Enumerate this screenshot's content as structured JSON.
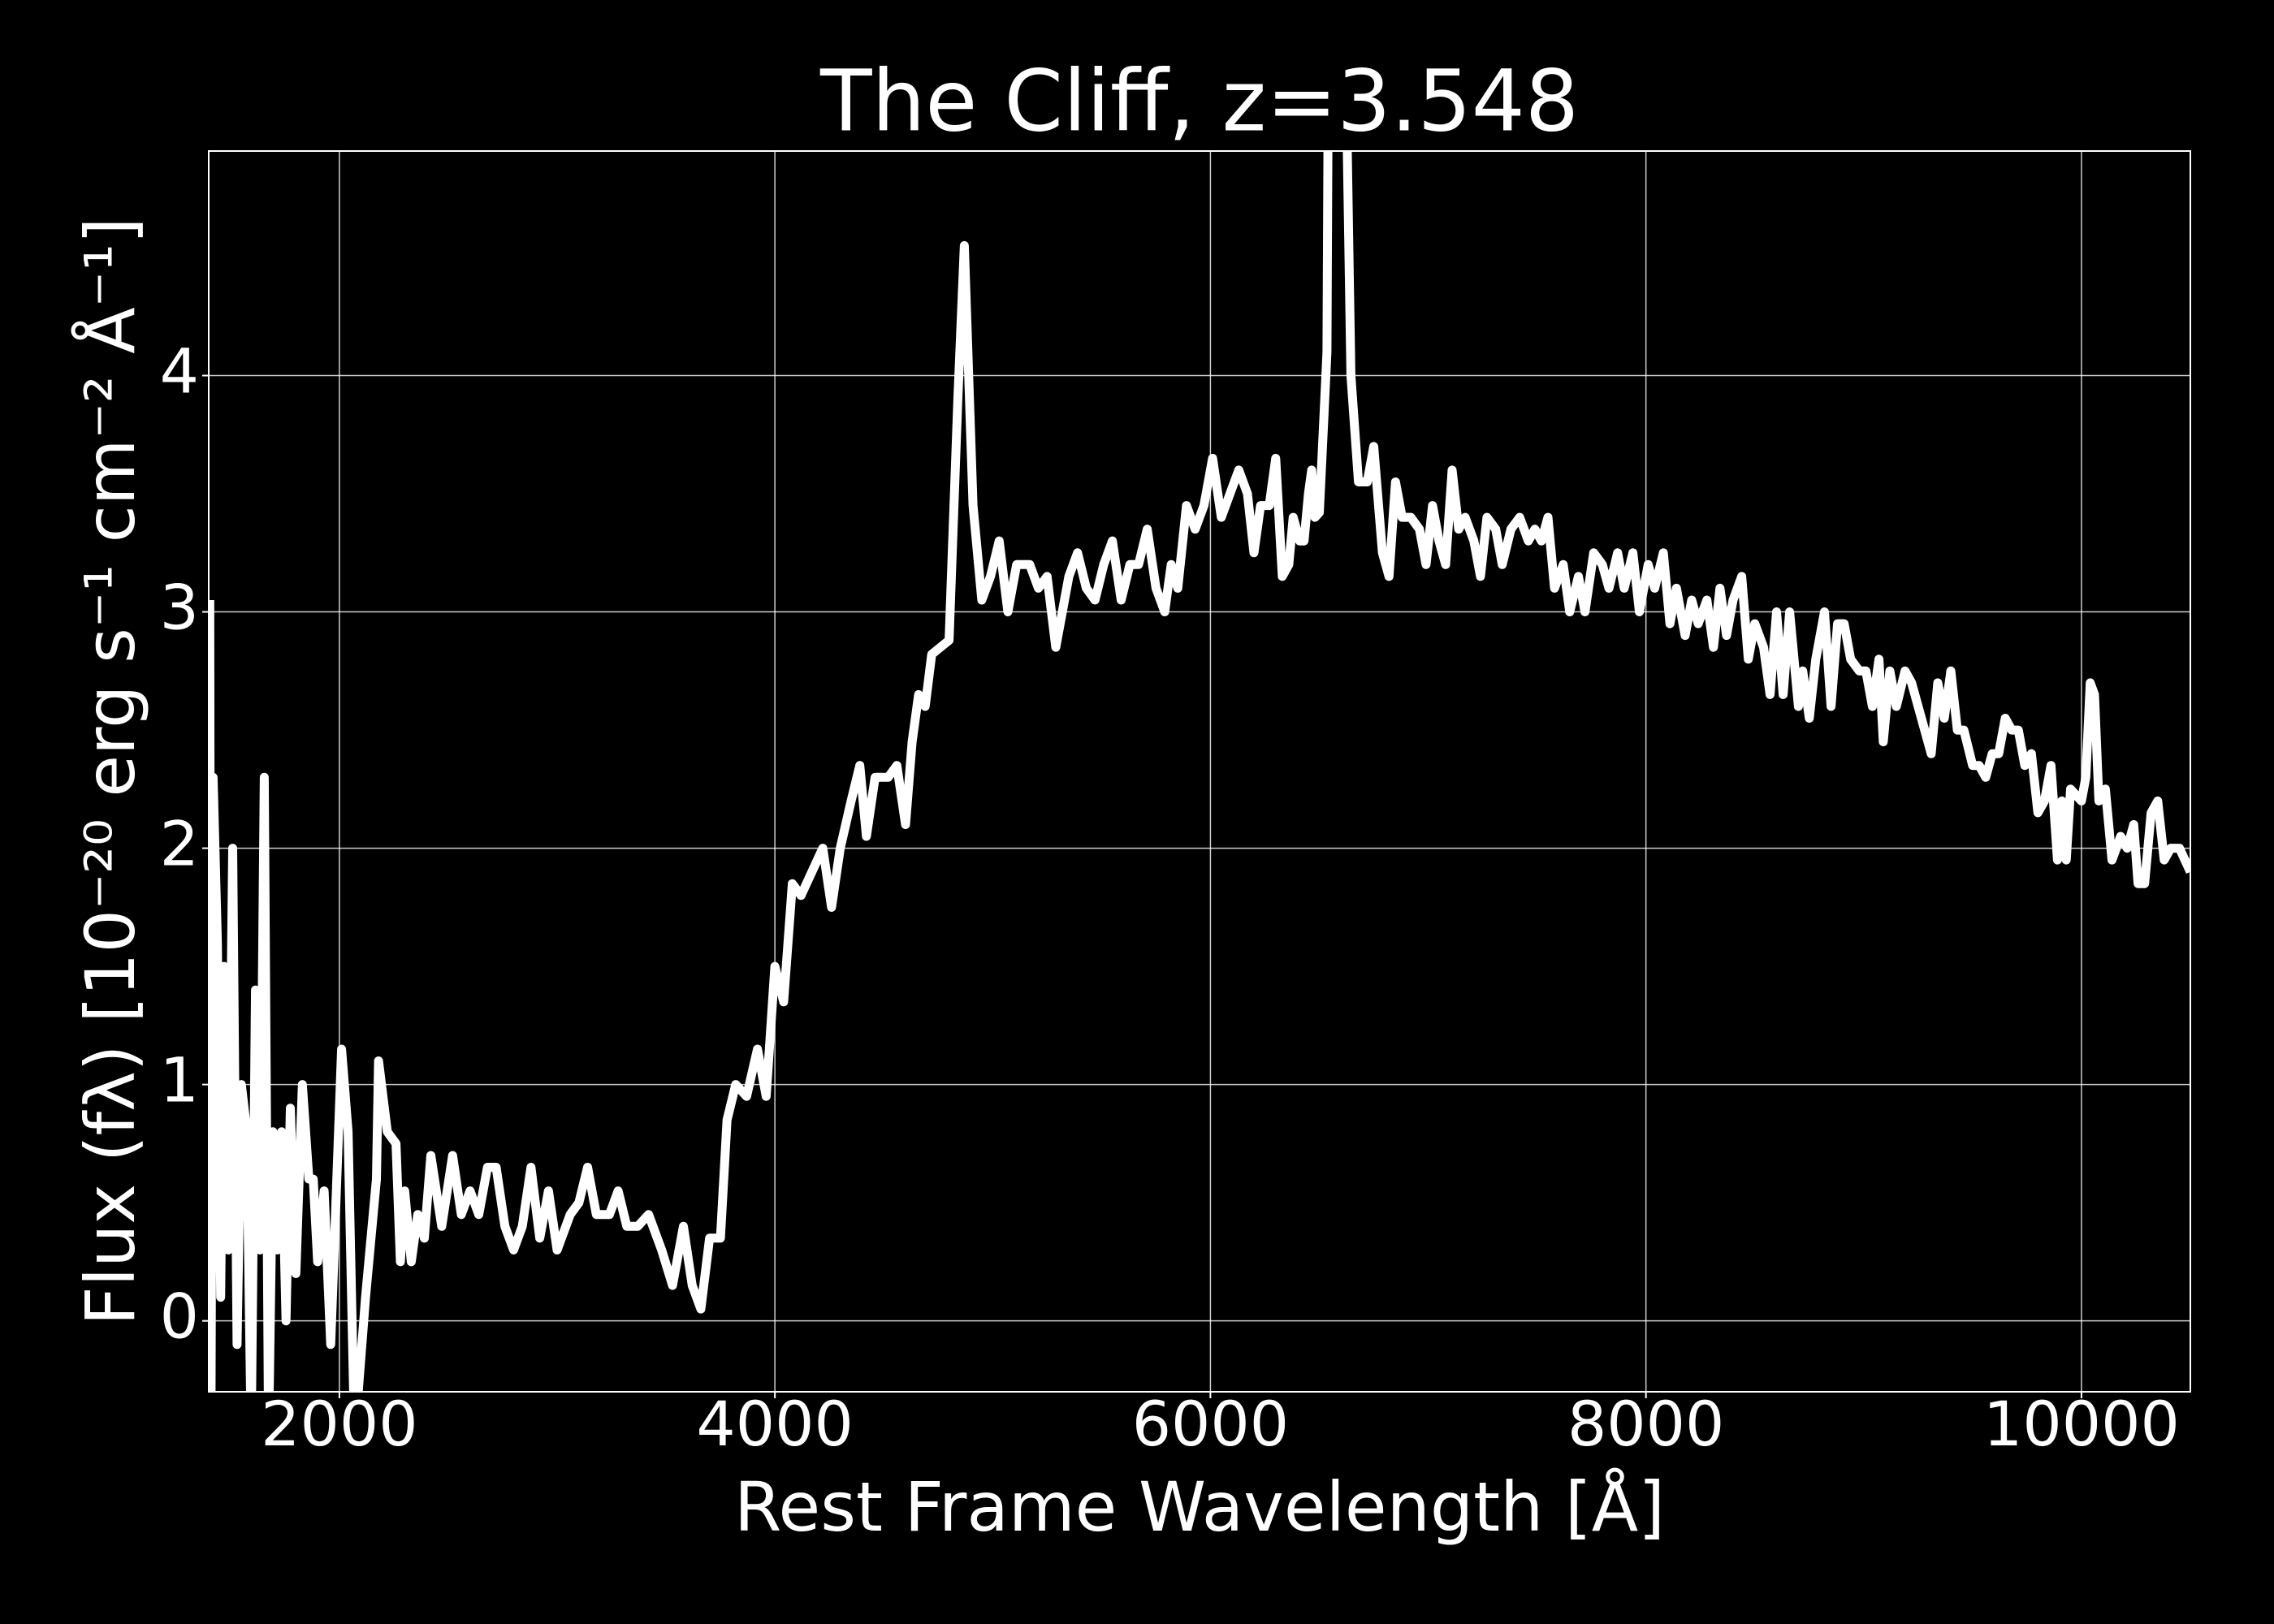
{
  "chart_data": {
    "type": "line",
    "title": "The Cliff, z=3.548",
    "x_label": "Rest Frame Wavelength [Å]",
    "y_label": "Flux (fλ) [10⁻²⁰ erg s⁻¹ cm⁻² Å⁻¹]",
    "color": "#ffffff",
    "grid": true,
    "xlim": [
      1400,
      10500
    ],
    "ylim": [
      -0.3,
      4.95
    ],
    "xticks": [
      2000,
      4000,
      6000,
      8000,
      10000
    ],
    "yticks": [
      0,
      1,
      2,
      3,
      4
    ],
    "x": [
      1405,
      1410,
      1420,
      1440,
      1455,
      1470,
      1490,
      1510,
      1530,
      1550,
      1575,
      1595,
      1615,
      1635,
      1655,
      1675,
      1695,
      1715,
      1735,
      1755,
      1775,
      1800,
      1830,
      1860,
      1880,
      1900,
      1930,
      1960,
      2010,
      2040,
      2070,
      2120,
      2170,
      2180,
      2220,
      2260,
      2280,
      2300,
      2330,
      2360,
      2390,
      2420,
      2470,
      2520,
      2560,
      2600,
      2640,
      2680,
      2720,
      2760,
      2800,
      2840,
      2880,
      2920,
      2960,
      3000,
      3060,
      3100,
      3140,
      3180,
      3240,
      3280,
      3320,
      3370,
      3420,
      3480,
      3530,
      3580,
      3620,
      3660,
      3700,
      3750,
      3780,
      3820,
      3870,
      3920,
      3960,
      4000,
      4040,
      4080,
      4120,
      4170,
      4220,
      4260,
      4300,
      4350,
      4390,
      4420,
      4460,
      4520,
      4560,
      4600,
      4630,
      4660,
      4690,
      4720,
      4800,
      4840,
      4870,
      4910,
      4950,
      4990,
      5030,
      5070,
      5110,
      5170,
      5210,
      5250,
      5290,
      5350,
      5390,
      5430,
      5470,
      5510,
      5550,
      5590,
      5630,
      5670,
      5710,
      5750,
      5790,
      5820,
      5850,
      5890,
      5930,
      5970,
      6010,
      6050,
      6090,
      6130,
      6170,
      6200,
      6230,
      6270,
      6300,
      6330,
      6360,
      6380,
      6410,
      6430,
      6450,
      6465,
      6480,
      6500,
      6520,
      6535,
      6545,
      6610,
      6645,
      6680,
      6720,
      6750,
      6790,
      6820,
      6850,
      6880,
      6920,
      6960,
      6990,
      7020,
      7050,
      7080,
      7110,
      7140,
      7170,
      7210,
      7240,
      7270,
      7310,
      7340,
      7380,
      7420,
      7460,
      7490,
      7520,
      7550,
      7580,
      7620,
      7650,
      7690,
      7720,
      7760,
      7800,
      7830,
      7870,
      7900,
      7940,
      7970,
      8010,
      8040,
      8080,
      8110,
      8140,
      8180,
      8210,
      8240,
      8280,
      8310,
      8340,
      8370,
      8400,
      8440,
      8470,
      8500,
      8540,
      8570,
      8600,
      8630,
      8660,
      8700,
      8720,
      8750,
      8780,
      8820,
      8850,
      8880,
      8910,
      8940,
      8980,
      9010,
      9040,
      9070,
      9090,
      9120,
      9150,
      9190,
      9220,
      9250,
      9280,
      9310,
      9340,
      9370,
      9400,
      9430,
      9460,
      9500,
      9530,
      9560,
      9590,
      9620,
      9650,
      9680,
      9710,
      9740,
      9770,
      9800,
      9830,
      9860,
      9890,
      9910,
      9930,
      9950,
      10000,
      10020,
      10040,
      10060,
      10080,
      10110,
      10140,
      10180,
      10210,
      10240,
      10260,
      10290,
      10320,
      10350,
      10380,
      10410,
      10450,
      10500
    ],
    "values": [
      3.05,
      -0.5,
      2.3,
      1.6,
      0.1,
      1.5,
      0.3,
      2.0,
      -0.1,
      1.0,
      0.8,
      -0.5,
      1.4,
      0.3,
      2.3,
      -0.5,
      0.8,
      0.3,
      0.8,
      0.0,
      0.9,
      0.2,
      1.0,
      0.6,
      0.6,
      0.25,
      0.55,
      -0.1,
      1.15,
      0.8,
      -0.5,
      0.1,
      0.6,
      1.1,
      0.8,
      0.75,
      0.25,
      0.55,
      0.25,
      0.45,
      0.35,
      0.7,
      0.4,
      0.7,
      0.45,
      0.55,
      0.45,
      0.65,
      0.65,
      0.4,
      0.3,
      0.4,
      0.65,
      0.35,
      0.55,
      0.3,
      0.45,
      0.5,
      0.65,
      0.45,
      0.45,
      0.55,
      0.4,
      0.4,
      0.45,
      0.3,
      0.15,
      0.4,
      0.15,
      0.05,
      0.35,
      0.35,
      0.85,
      1.0,
      0.95,
      1.15,
      0.95,
      1.5,
      1.35,
      1.85,
      1.8,
      1.9,
      2.0,
      1.75,
      2.0,
      2.2,
      2.35,
      2.05,
      2.3,
      2.3,
      2.35,
      2.1,
      2.45,
      2.65,
      2.6,
      2.82,
      2.88,
      3.9,
      4.55,
      3.45,
      3.05,
      3.15,
      3.3,
      3.0,
      3.2,
      3.2,
      3.1,
      3.15,
      2.85,
      3.15,
      3.25,
      3.1,
      3.05,
      3.2,
      3.3,
      3.05,
      3.2,
      3.2,
      3.35,
      3.1,
      3.0,
      3.2,
      3.1,
      3.45,
      3.35,
      3.45,
      3.65,
      3.4,
      3.5,
      3.6,
      3.5,
      3.25,
      3.45,
      3.45,
      3.65,
      3.15,
      3.2,
      3.4,
      3.3,
      3.3,
      3.5,
      3.6,
      3.4,
      3.42,
      3.8,
      4.1,
      6.0,
      6.0,
      4.0,
      3.55,
      3.55,
      3.7,
      3.25,
      3.15,
      3.55,
      3.4,
      3.4,
      3.35,
      3.2,
      3.45,
      3.3,
      3.2,
      3.6,
      3.35,
      3.4,
      3.3,
      3.15,
      3.4,
      3.35,
      3.2,
      3.35,
      3.4,
      3.3,
      3.35,
      3.3,
      3.4,
      3.1,
      3.2,
      3.0,
      3.15,
      3.0,
      3.25,
      3.2,
      3.1,
      3.25,
      3.1,
      3.25,
      3.0,
      3.2,
      3.1,
      3.25,
      2.95,
      3.1,
      2.9,
      3.05,
      2.95,
      3.05,
      2.85,
      3.1,
      2.9,
      3.05,
      3.15,
      2.8,
      2.95,
      2.85,
      2.65,
      3.0,
      2.65,
      3.0,
      2.6,
      2.75,
      2.55,
      2.8,
      3.0,
      2.6,
      2.95,
      2.95,
      2.8,
      2.75,
      2.75,
      2.6,
      2.8,
      2.45,
      2.75,
      2.6,
      2.75,
      2.7,
      2.6,
      2.5,
      2.4,
      2.7,
      2.55,
      2.75,
      2.5,
      2.5,
      2.35,
      2.35,
      2.3,
      2.4,
      2.4,
      2.55,
      2.5,
      2.5,
      2.35,
      2.4,
      2.15,
      2.2,
      2.35,
      1.95,
      2.2,
      1.95,
      2.25,
      2.2,
      2.3,
      2.7,
      2.65,
      2.2,
      2.25,
      1.95,
      2.05,
      2.0,
      2.1,
      1.85,
      1.85,
      2.15,
      2.2,
      1.95,
      2.0,
      2.0,
      1.9
    ]
  }
}
